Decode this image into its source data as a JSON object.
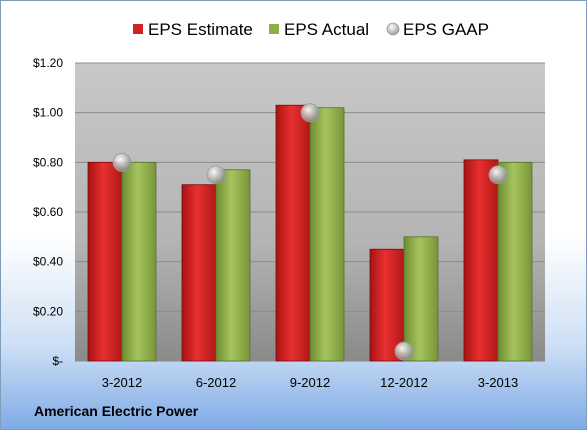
{
  "company": "American Electric Power",
  "chart_data": {
    "type": "bar",
    "categories": [
      "3-2012",
      "6-2012",
      "9-2012",
      "12-2012",
      "3-2013"
    ],
    "series": [
      {
        "name": "EPS Estimate",
        "kind": "bar",
        "color": "#d42020",
        "values": [
          0.8,
          0.71,
          1.03,
          0.45,
          0.81
        ]
      },
      {
        "name": "EPS Actual",
        "kind": "bar",
        "color": "#8fae4a",
        "values": [
          0.8,
          0.77,
          1.02,
          0.5,
          0.8
        ]
      },
      {
        "name": "EPS GAAP",
        "kind": "marker",
        "color": "#b8b8b8",
        "values": [
          0.8,
          0.75,
          1.0,
          0.04,
          0.75
        ]
      }
    ],
    "ylim": [
      0,
      1.2
    ],
    "yticks": [
      {
        "value": 0,
        "label": "$-"
      },
      {
        "value": 0.2,
        "label": "$0.20"
      },
      {
        "value": 0.4,
        "label": "$0.40"
      },
      {
        "value": 0.6,
        "label": "$0.60"
      },
      {
        "value": 0.8,
        "label": "$0.80"
      },
      {
        "value": 1.0,
        "label": "$1.00"
      },
      {
        "value": 1.2,
        "label": "$1.20"
      }
    ],
    "grid": true,
    "legend_position": "top"
  }
}
